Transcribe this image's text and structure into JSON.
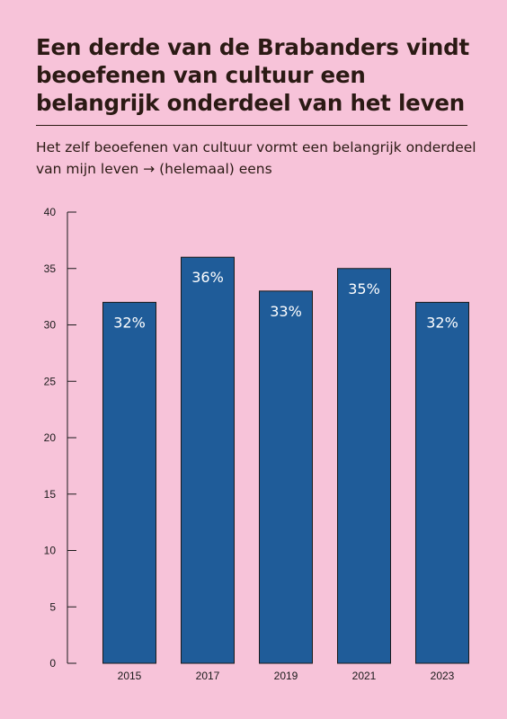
{
  "title": "Een derde van de Brabanders vindt beoefenen van cultuur een belangrijk onderdeel van het leven",
  "subtitle": "Het zelf beoefenen van cultuur vormt een belangrijk onderdeel van mijn leven → (helemaal) eens",
  "colors": {
    "background": "#f7c3d9",
    "bar": "#1f5c99",
    "text": "#2b1a14"
  },
  "chart_data": {
    "type": "bar",
    "title": "Een derde van de Brabanders vindt beoefenen van cultuur een belangrijk onderdeel van het leven",
    "subtitle": "Het zelf beoefenen van cultuur vormt een belangrijk onderdeel van mijn leven → (helemaal) eens",
    "categories": [
      "2015",
      "2017",
      "2019",
      "2021",
      "2023"
    ],
    "values": [
      32,
      36,
      33,
      35,
      32
    ],
    "data_labels": [
      "32%",
      "36%",
      "33%",
      "35%",
      "32%"
    ],
    "y_ticks": [
      "0",
      "5",
      "10",
      "15",
      "20",
      "25",
      "30",
      "35",
      "40"
    ],
    "ylim": [
      0,
      40
    ],
    "xlabel": "",
    "ylabel": "",
    "grid": false,
    "legend": "none"
  }
}
